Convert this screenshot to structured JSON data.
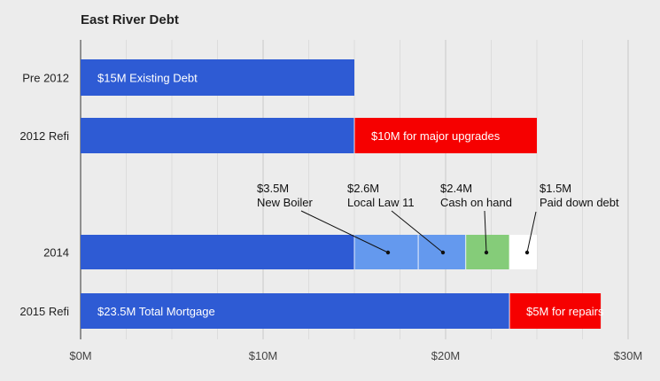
{
  "chart_data": {
    "type": "bar",
    "orientation": "horizontal",
    "stacked": true,
    "title": "East River Debt",
    "xlabel": "",
    "ylabel": "",
    "xlim": [
      0,
      30
    ],
    "x_ticks": [
      {
        "value": 0,
        "label": "$0M"
      },
      {
        "value": 10,
        "label": "$10M"
      },
      {
        "value": 20,
        "label": "$20M"
      },
      {
        "value": 30,
        "label": "$30M"
      }
    ],
    "grid": true,
    "categories": [
      "Pre 2012",
      "2012 Refi",
      "2014",
      "2015 Refi"
    ],
    "rows": [
      {
        "category": "Pre 2012",
        "segments": [
          {
            "value": 15,
            "color": "#2e5bd4",
            "label": "$15M Existing Debt"
          }
        ]
      },
      {
        "category": "2012 Refi",
        "segments": [
          {
            "value": 15,
            "color": "#2e5bd4",
            "label": ""
          },
          {
            "value": 10,
            "color": "#f60000",
            "label": "$10M for major upgrades"
          }
        ]
      },
      {
        "category": "2014",
        "segments": [
          {
            "value": 15,
            "color": "#2e5bd4",
            "label": ""
          },
          {
            "value": 3.5,
            "color": "#6499ee",
            "label": ""
          },
          {
            "value": 2.6,
            "color": "#6499ee",
            "label": ""
          },
          {
            "value": 2.4,
            "color": "#85cc79",
            "label": ""
          },
          {
            "value": 1.5,
            "color": "#ffffff",
            "label": ""
          }
        ]
      },
      {
        "category": "2015 Refi",
        "segments": [
          {
            "value": 23.5,
            "color": "#2e5bd4",
            "label": "$23.5M Total Mortgage"
          },
          {
            "value": 5,
            "color": "#f60000",
            "label": "$5M for repairs"
          }
        ]
      }
    ],
    "annotations": [
      {
        "amount": "$3.5M",
        "text": "New Boiler",
        "row": "2014",
        "segment": 1
      },
      {
        "amount": "$2.6M",
        "text": "Local Law 11",
        "row": "2014",
        "segment": 2
      },
      {
        "amount": "$2.4M",
        "text": "Cash on hand",
        "row": "2014",
        "segment": 3
      },
      {
        "amount": "$1.5M",
        "text": "Paid down debt",
        "row": "2014",
        "segment": 4
      }
    ]
  }
}
